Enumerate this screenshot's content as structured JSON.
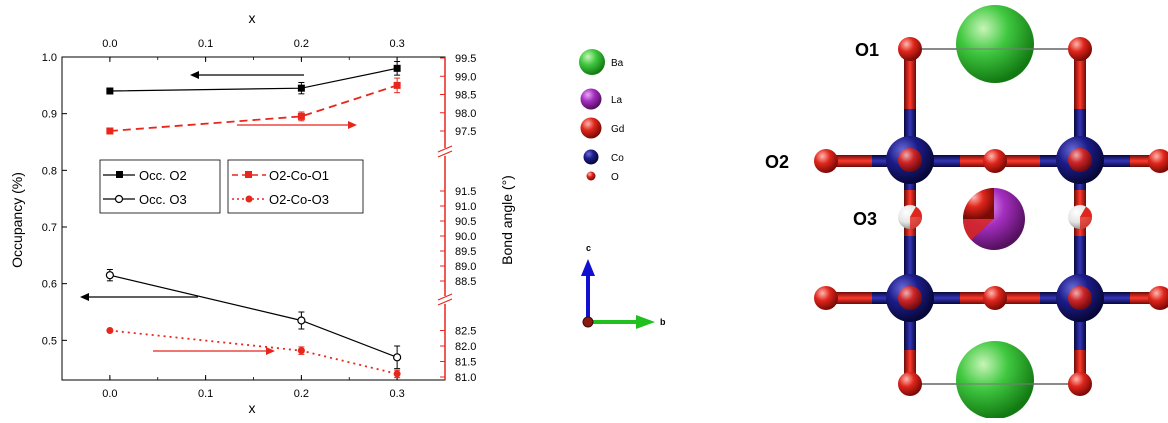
{
  "chart_data": {
    "type": "line",
    "xlabel": "x",
    "x_top_label": "x",
    "ylabel_left": "Occupancy (%)",
    "ylabel_right": "Bond angle (°)",
    "x": [
      0.0,
      0.2,
      0.3
    ],
    "xlim": [
      -0.05,
      0.35
    ],
    "xticks": [
      "0.0",
      "0.1",
      "0.2",
      "0.3"
    ],
    "ylim_left": [
      0.43,
      1.0
    ],
    "yticks_left": [
      "0.5",
      "0.6",
      "0.7",
      "0.8",
      "0.9",
      "1.0"
    ],
    "yticks_right_upper": [
      "97.5",
      "98.0",
      "98.5",
      "99.0",
      "99.5"
    ],
    "yticks_right_middle": [
      "88.5",
      "89.0",
      "89.5",
      "90.0",
      "90.5",
      "91.0",
      "91.5"
    ],
    "yticks_right_lower": [
      "81.0",
      "81.5",
      "82.0",
      "82.5"
    ],
    "series": [
      {
        "name": "Occ. O2",
        "axis": "left",
        "values": [
          0.94,
          0.945,
          0.98
        ],
        "errors": [
          0.005,
          0.01,
          0.012
        ],
        "color": "#000000",
        "marker": "filled-square",
        "line": "solid"
      },
      {
        "name": "Occ. O3",
        "axis": "left",
        "values": [
          0.615,
          0.535,
          0.47
        ],
        "errors": [
          0.01,
          0.015,
          0.02
        ],
        "color": "#000000",
        "marker": "open-circle",
        "line": "solid"
      },
      {
        "name": "O2-Co-O1",
        "axis": "right",
        "values": [
          97.5,
          97.9,
          98.75
        ],
        "errors": [
          0.0,
          0.12,
          0.2
        ],
        "color": "#e8261c",
        "marker": "filled-square",
        "line": "dashed"
      },
      {
        "name": "O2-Co-O3",
        "axis": "right",
        "values": [
          82.5,
          81.85,
          81.1
        ],
        "errors": [
          0.0,
          0.12,
          0.12
        ],
        "color": "#e8261c",
        "marker": "filled-circle",
        "line": "dotted"
      }
    ],
    "legend_placement": "middle-left",
    "grid": false
  },
  "structure": {
    "legend": [
      {
        "label": "Ba",
        "color": "#3ec43e"
      },
      {
        "label": "La",
        "color": "#a52fc0"
      },
      {
        "label": "Gd",
        "color": "#d8261c"
      },
      {
        "label": "Co",
        "color": "#1f1f8c"
      },
      {
        "label": "O",
        "color": "#d8261c"
      }
    ],
    "axes": {
      "c": "c",
      "b": "b",
      "c_color": "#1010d0",
      "b_color": "#20c020"
    },
    "site_labels": {
      "o1": "O1",
      "o2": "O2",
      "o3": "O3"
    }
  }
}
